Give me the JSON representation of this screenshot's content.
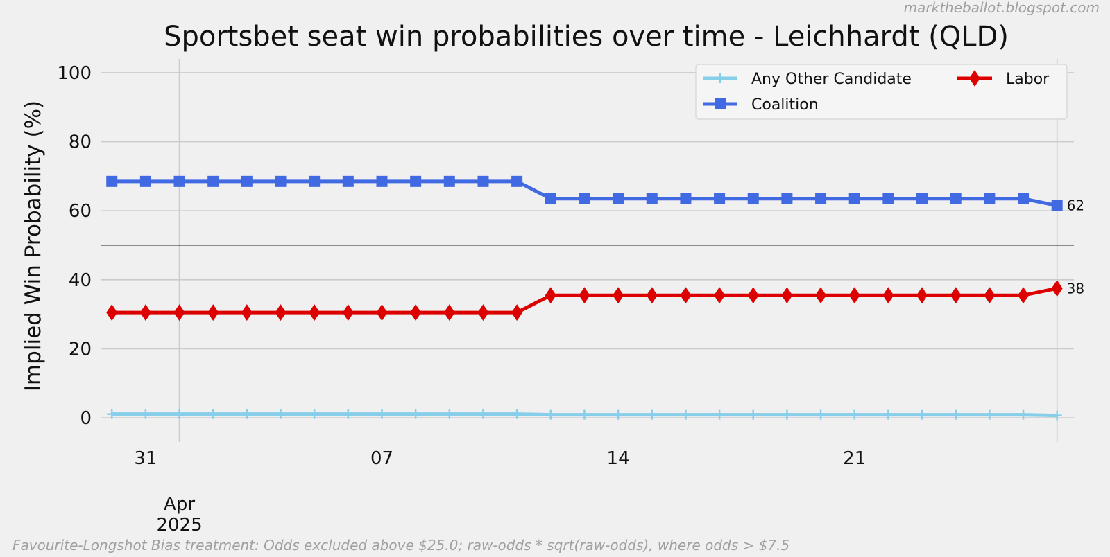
{
  "watermark": "marktheballot.blogspot.com",
  "footnote": "Favourite-Longshot Bias treatment: Odds excluded above $25.0; raw-odds * sqrt(raw-odds), where odds > $7.5",
  "chart_data": {
    "type": "line",
    "title": "Sportsbet seat win probabilities over time - Leichhardt (QLD)",
    "xlabel": "",
    "ylabel": "Implied Win Probability (%)",
    "ylim": [
      -3,
      104
    ],
    "yticks": [
      0,
      20,
      40,
      60,
      80,
      100
    ],
    "reference_line_y": 50,
    "grid": true,
    "legend_position": "top-right",
    "x": [
      "2025-03-30",
      "2025-03-31",
      "2025-04-01",
      "2025-04-02",
      "2025-04-03",
      "2025-04-04",
      "2025-04-05",
      "2025-04-06",
      "2025-04-07",
      "2025-04-08",
      "2025-04-09",
      "2025-04-10",
      "2025-04-11",
      "2025-04-12",
      "2025-04-13",
      "2025-04-14",
      "2025-04-15",
      "2025-04-16",
      "2025-04-17",
      "2025-04-18",
      "2025-04-19",
      "2025-04-20",
      "2025-04-21",
      "2025-04-22",
      "2025-04-23",
      "2025-04-24",
      "2025-04-25",
      "2025-04-26",
      "2025-04-27"
    ],
    "xlim": [
      "2025-03-29T16:00",
      "2025-04-27T12:00"
    ],
    "xticks": [
      {
        "date": "2025-03-31",
        "label": "31"
      },
      {
        "date": "2025-04-07",
        "label": "07"
      },
      {
        "date": "2025-04-14",
        "label": "14"
      },
      {
        "date": "2025-04-21",
        "label": "21"
      }
    ],
    "month_label": {
      "date": "2025-04-01",
      "label": "Apr",
      "year": "2025"
    },
    "series": [
      {
        "name": "Any Other Candidate",
        "color": "#87ceeb",
        "marker": "plus",
        "values": [
          1.1,
          1.1,
          1.1,
          1.1,
          1.1,
          1.1,
          1.1,
          1.1,
          1.1,
          1.1,
          1.1,
          1.1,
          1.1,
          0.9,
          0.9,
          0.9,
          0.9,
          0.9,
          0.9,
          0.9,
          0.9,
          0.9,
          0.9,
          0.9,
          0.9,
          0.9,
          0.9,
          0.9,
          0.7
        ]
      },
      {
        "name": "Coalition",
        "color": "#4169e1",
        "marker": "square",
        "values": [
          68.5,
          68.5,
          68.5,
          68.5,
          68.5,
          68.5,
          68.5,
          68.5,
          68.5,
          68.5,
          68.5,
          68.5,
          68.5,
          63.5,
          63.5,
          63.5,
          63.5,
          63.5,
          63.5,
          63.5,
          63.5,
          63.5,
          63.5,
          63.5,
          63.5,
          63.5,
          63.5,
          63.5,
          61.5
        ],
        "end_label": "62"
      },
      {
        "name": "Labor",
        "color": "#dd0000",
        "marker": "diamond",
        "values": [
          30.5,
          30.5,
          30.5,
          30.5,
          30.5,
          30.5,
          30.5,
          30.5,
          30.5,
          30.5,
          30.5,
          30.5,
          30.5,
          35.5,
          35.5,
          35.5,
          35.5,
          35.5,
          35.5,
          35.5,
          35.5,
          35.5,
          35.5,
          35.5,
          35.5,
          35.5,
          35.5,
          35.5,
          37.5
        ],
        "end_label": "38"
      }
    ]
  }
}
